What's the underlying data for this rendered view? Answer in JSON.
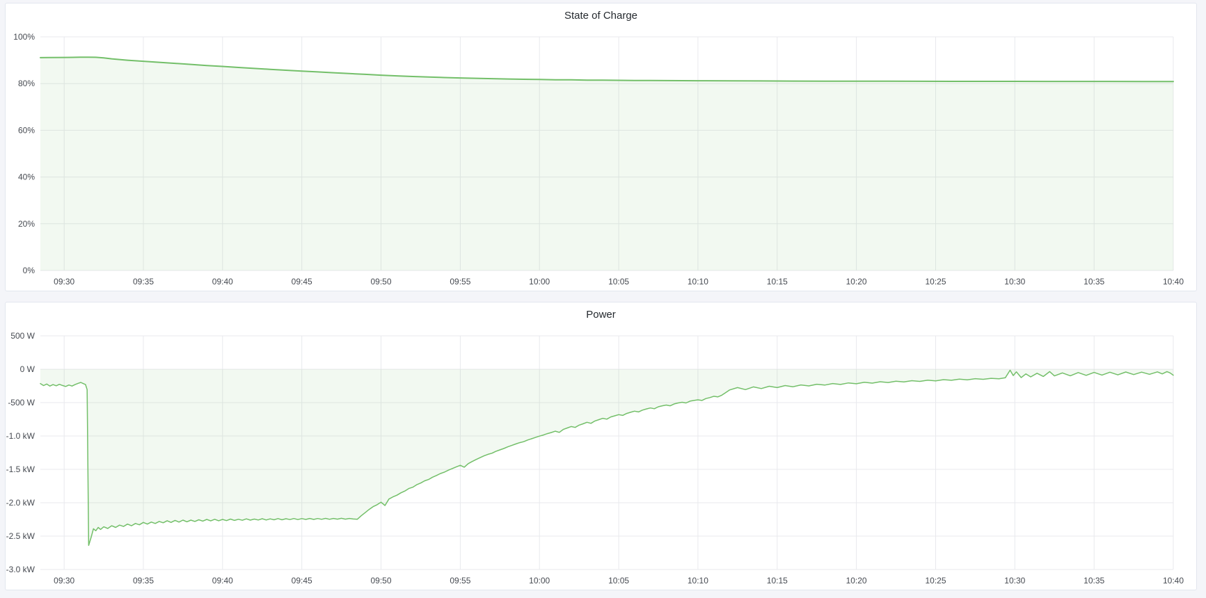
{
  "page": {
    "background": "#f4f5f9",
    "panel_background": "#ffffff",
    "panel_border": "#e2e6ee",
    "title_color": "#24292e",
    "tick_text_color": "#464a51"
  },
  "panels": [
    {
      "title": "State of Charge"
    },
    {
      "title": "Power"
    }
  ],
  "chart_data": [
    {
      "type": "area",
      "title": "State of Charge",
      "series_name": "State of Charge",
      "xlabel": "",
      "ylabel": "",
      "unit": "percent",
      "grid": "on",
      "legend": "none",
      "x_tick_labels": [
        "09:30",
        "09:35",
        "09:40",
        "09:45",
        "09:50",
        "09:55",
        "10:00",
        "10:05",
        "10:10",
        "10:15",
        "10:20",
        "10:25",
        "10:30",
        "10:35",
        "10:40"
      ],
      "x_tick_minutes": [
        0,
        5,
        10,
        15,
        20,
        25,
        30,
        35,
        40,
        45,
        50,
        55,
        60,
        65,
        70
      ],
      "x_range_minutes": [
        -1.5,
        70
      ],
      "y_range": [
        0,
        100
      ],
      "y_ticks": [
        {
          "value": 100,
          "label": "100%"
        },
        {
          "value": 80,
          "label": "80%"
        },
        {
          "value": 60,
          "label": "60%"
        },
        {
          "value": 40,
          "label": "40%"
        },
        {
          "value": 20,
          "label": "20%"
        },
        {
          "value": 0,
          "label": "0%"
        }
      ],
      "line_color": "#73bf69",
      "line_width": 2,
      "fill_color": "rgba(115,191,105,0.09)",
      "grid_color": "#e8e9ed",
      "tick_text_color": "#464a51",
      "points_minutes_value": [
        [
          -1.5,
          91.1
        ],
        [
          -1,
          91.15
        ],
        [
          0,
          91.2
        ],
        [
          0.5,
          91.22
        ],
        [
          1,
          91.28
        ],
        [
          1.5,
          91.3
        ],
        [
          2,
          91.25
        ],
        [
          2.5,
          91.0
        ],
        [
          3,
          90.6
        ],
        [
          3.5,
          90.3
        ],
        [
          4,
          90.0
        ],
        [
          5,
          89.55
        ],
        [
          6,
          89.1
        ],
        [
          7,
          88.65
        ],
        [
          8,
          88.2
        ],
        [
          9,
          87.75
        ],
        [
          10,
          87.35
        ],
        [
          11,
          86.9
        ],
        [
          12,
          86.5
        ],
        [
          13,
          86.1
        ],
        [
          14,
          85.7
        ],
        [
          15,
          85.35
        ],
        [
          16,
          85.0
        ],
        [
          17,
          84.65
        ],
        [
          18,
          84.3
        ],
        [
          19,
          83.95
        ],
        [
          20,
          83.6
        ],
        [
          21,
          83.3
        ],
        [
          22,
          83.05
        ],
        [
          23,
          82.8
        ],
        [
          24,
          82.6
        ],
        [
          25,
          82.4
        ],
        [
          26,
          82.25
        ],
        [
          27,
          82.1
        ],
        [
          28,
          81.95
        ],
        [
          29,
          81.85
        ],
        [
          30,
          81.75
        ],
        [
          31,
          81.65
        ],
        [
          32,
          81.6
        ],
        [
          33,
          81.5
        ],
        [
          34,
          81.45
        ],
        [
          35,
          81.4
        ],
        [
          36,
          81.35
        ],
        [
          37,
          81.3
        ],
        [
          38,
          81.28
        ],
        [
          39,
          81.25
        ],
        [
          40,
          81.22
        ],
        [
          42,
          81.18
        ],
        [
          44,
          81.12
        ],
        [
          46,
          81.08
        ],
        [
          48,
          81.05
        ],
        [
          50,
          81.02
        ],
        [
          52,
          81.0
        ],
        [
          54,
          80.98
        ],
        [
          56,
          80.96
        ],
        [
          58,
          80.95
        ],
        [
          60,
          80.94
        ],
        [
          62,
          80.93
        ],
        [
          64,
          80.92
        ],
        [
          66,
          80.91
        ],
        [
          68,
          80.9
        ],
        [
          70,
          80.9
        ]
      ]
    },
    {
      "type": "area",
      "title": "Power",
      "series_name": "Power",
      "xlabel": "",
      "ylabel": "",
      "unit": "watt",
      "grid": "on",
      "legend": "none",
      "x_tick_labels": [
        "09:30",
        "09:35",
        "09:40",
        "09:45",
        "09:50",
        "09:55",
        "10:00",
        "10:05",
        "10:10",
        "10:15",
        "10:20",
        "10:25",
        "10:30",
        "10:35",
        "10:40"
      ],
      "x_tick_minutes": [
        0,
        5,
        10,
        15,
        20,
        25,
        30,
        35,
        40,
        45,
        50,
        55,
        60,
        65,
        70
      ],
      "x_range_minutes": [
        -1.5,
        70
      ],
      "y_range": [
        -3000,
        500
      ],
      "y_ticks": [
        {
          "value": 500,
          "label": "500 W"
        },
        {
          "value": 0,
          "label": "0 W"
        },
        {
          "value": -500,
          "label": "-500 W"
        },
        {
          "value": -1000,
          "label": "-1.0 kW"
        },
        {
          "value": -1500,
          "label": "-1.5 kW"
        },
        {
          "value": -2000,
          "label": "-2.0 kW"
        },
        {
          "value": -2500,
          "label": "-2.5 kW"
        },
        {
          "value": -3000,
          "label": "-3.0 kW"
        }
      ],
      "line_color": "#73bf69",
      "line_width": 1.5,
      "fill_color": "rgba(115,191,105,0.09)",
      "grid_color": "#e8e9ed",
      "tick_text_color": "#464a51",
      "points_minutes_value": [
        [
          -1.5,
          -215
        ],
        [
          -1.3,
          -245
        ],
        [
          -1.1,
          -222
        ],
        [
          -0.9,
          -252
        ],
        [
          -0.7,
          -230
        ],
        [
          -0.5,
          -248
        ],
        [
          -0.3,
          -226
        ],
        [
          -0.1,
          -244
        ],
        [
          0.1,
          -258
        ],
        [
          0.3,
          -236
        ],
        [
          0.5,
          -252
        ],
        [
          0.7,
          -228
        ],
        [
          0.9,
          -210
        ],
        [
          1.05,
          -198
        ],
        [
          1.2,
          -215
        ],
        [
          1.35,
          -230
        ],
        [
          1.45,
          -305
        ],
        [
          1.55,
          -2640
        ],
        [
          1.7,
          -2520
        ],
        [
          1.85,
          -2390
        ],
        [
          2,
          -2420
        ],
        [
          2.15,
          -2370
        ],
        [
          2.3,
          -2400
        ],
        [
          2.5,
          -2360
        ],
        [
          2.75,
          -2385
        ],
        [
          3,
          -2345
        ],
        [
          3.25,
          -2370
        ],
        [
          3.5,
          -2335
        ],
        [
          3.75,
          -2355
        ],
        [
          4,
          -2320
        ],
        [
          4.25,
          -2345
        ],
        [
          4.5,
          -2310
        ],
        [
          4.75,
          -2330
        ],
        [
          5,
          -2295
        ],
        [
          5.25,
          -2320
        ],
        [
          5.5,
          -2290
        ],
        [
          5.75,
          -2310
        ],
        [
          6,
          -2280
        ],
        [
          6.25,
          -2300
        ],
        [
          6.5,
          -2270
        ],
        [
          6.75,
          -2295
        ],
        [
          7,
          -2265
        ],
        [
          7.25,
          -2290
        ],
        [
          7.5,
          -2260
        ],
        [
          7.75,
          -2285
        ],
        [
          8,
          -2260
        ],
        [
          8.25,
          -2280
        ],
        [
          8.5,
          -2255
        ],
        [
          8.75,
          -2275
        ],
        [
          9,
          -2250
        ],
        [
          9.25,
          -2272
        ],
        [
          9.5,
          -2248
        ],
        [
          9.75,
          -2270
        ],
        [
          10,
          -2250
        ],
        [
          10.25,
          -2268
        ],
        [
          10.5,
          -2245
        ],
        [
          10.75,
          -2265
        ],
        [
          11,
          -2248
        ],
        [
          11.25,
          -2262
        ],
        [
          11.5,
          -2242
        ],
        [
          11.75,
          -2260
        ],
        [
          12,
          -2245
        ],
        [
          12.25,
          -2258
        ],
        [
          12.5,
          -2240
        ],
        [
          12.75,
          -2258
        ],
        [
          13,
          -2242
        ],
        [
          13.25,
          -2255
        ],
        [
          13.5,
          -2238
        ],
        [
          13.75,
          -2255
        ],
        [
          14,
          -2240
        ],
        [
          14.25,
          -2252
        ],
        [
          14.5,
          -2236
        ],
        [
          14.75,
          -2252
        ],
        [
          15,
          -2238
        ],
        [
          15.25,
          -2250
        ],
        [
          15.5,
          -2235
        ],
        [
          15.75,
          -2250
        ],
        [
          16,
          -2236
        ],
        [
          16.25,
          -2248
        ],
        [
          16.5,
          -2234
        ],
        [
          16.75,
          -2248
        ],
        [
          17,
          -2235
        ],
        [
          17.25,
          -2246
        ],
        [
          17.5,
          -2233
        ],
        [
          17.75,
          -2246
        ],
        [
          18,
          -2235
        ],
        [
          18.25,
          -2244
        ],
        [
          18.5,
          -2248
        ],
        [
          18.75,
          -2195
        ],
        [
          19,
          -2148
        ],
        [
          19.25,
          -2100
        ],
        [
          19.5,
          -2058
        ],
        [
          19.75,
          -2030
        ],
        [
          20,
          -1992
        ],
        [
          20.25,
          -2042
        ],
        [
          20.5,
          -1945
        ],
        [
          20.75,
          -1912
        ],
        [
          21,
          -1888
        ],
        [
          21.25,
          -1852
        ],
        [
          21.5,
          -1825
        ],
        [
          21.75,
          -1788
        ],
        [
          22,
          -1768
        ],
        [
          22.25,
          -1730
        ],
        [
          22.5,
          -1705
        ],
        [
          22.75,
          -1672
        ],
        [
          23,
          -1652
        ],
        [
          23.25,
          -1618
        ],
        [
          23.5,
          -1592
        ],
        [
          23.75,
          -1562
        ],
        [
          24,
          -1542
        ],
        [
          24.25,
          -1512
        ],
        [
          24.5,
          -1488
        ],
        [
          24.75,
          -1462
        ],
        [
          25,
          -1440
        ],
        [
          25.25,
          -1468
        ],
        [
          25.5,
          -1415
        ],
        [
          25.75,
          -1382
        ],
        [
          26,
          -1352
        ],
        [
          26.25,
          -1325
        ],
        [
          26.5,
          -1298
        ],
        [
          26.75,
          -1275
        ],
        [
          27,
          -1258
        ],
        [
          27.25,
          -1230
        ],
        [
          27.5,
          -1208
        ],
        [
          27.75,
          -1188
        ],
        [
          28,
          -1162
        ],
        [
          28.25,
          -1142
        ],
        [
          28.5,
          -1120
        ],
        [
          28.75,
          -1100
        ],
        [
          29,
          -1085
        ],
        [
          29.25,
          -1060
        ],
        [
          29.5,
          -1042
        ],
        [
          29.75,
          -1022
        ],
        [
          30,
          -1002
        ],
        [
          30.25,
          -985
        ],
        [
          30.5,
          -965
        ],
        [
          30.75,
          -948
        ],
        [
          31,
          -928
        ],
        [
          31.25,
          -946
        ],
        [
          31.5,
          -902
        ],
        [
          31.75,
          -880
        ],
        [
          32,
          -858
        ],
        [
          32.25,
          -872
        ],
        [
          32.5,
          -838
        ],
        [
          32.75,
          -818
        ],
        [
          33,
          -795
        ],
        [
          33.25,
          -810
        ],
        [
          33.5,
          -775
        ],
        [
          33.75,
          -755
        ],
        [
          34,
          -735
        ],
        [
          34.25,
          -748
        ],
        [
          34.5,
          -715
        ],
        [
          34.75,
          -698
        ],
        [
          35,
          -680
        ],
        [
          35.25,
          -692
        ],
        [
          35.5,
          -662
        ],
        [
          35.75,
          -645
        ],
        [
          36,
          -628
        ],
        [
          36.25,
          -640
        ],
        [
          36.5,
          -612
        ],
        [
          36.75,
          -595
        ],
        [
          37,
          -580
        ],
        [
          37.25,
          -592
        ],
        [
          37.5,
          -562
        ],
        [
          37.75,
          -548
        ],
        [
          38,
          -536
        ],
        [
          38.25,
          -548
        ],
        [
          38.5,
          -520
        ],
        [
          38.75,
          -505
        ],
        [
          39,
          -495
        ],
        [
          39.25,
          -505
        ],
        [
          39.5,
          -478
        ],
        [
          39.75,
          -468
        ],
        [
          40,
          -458
        ],
        [
          40.25,
          -468
        ],
        [
          40.5,
          -440
        ],
        [
          40.75,
          -425
        ],
        [
          41,
          -405
        ],
        [
          41.25,
          -415
        ],
        [
          41.5,
          -390
        ],
        [
          41.75,
          -350
        ],
        [
          42,
          -310
        ],
        [
          42.5,
          -275
        ],
        [
          43,
          -305
        ],
        [
          43.5,
          -265
        ],
        [
          44,
          -290
        ],
        [
          44.5,
          -255
        ],
        [
          45,
          -275
        ],
        [
          45.5,
          -245
        ],
        [
          46,
          -262
        ],
        [
          46.5,
          -235
        ],
        [
          47,
          -250
        ],
        [
          47.5,
          -225
        ],
        [
          48,
          -238
        ],
        [
          48.5,
          -215
        ],
        [
          49,
          -228
        ],
        [
          49.5,
          -205
        ],
        [
          50,
          -218
        ],
        [
          50.5,
          -196
        ],
        [
          51,
          -208
        ],
        [
          51.5,
          -188
        ],
        [
          52,
          -199
        ],
        [
          52.5,
          -180
        ],
        [
          53,
          -190
        ],
        [
          53.5,
          -172
        ],
        [
          54,
          -182
        ],
        [
          54.5,
          -164
        ],
        [
          55,
          -174
        ],
        [
          55.5,
          -156
        ],
        [
          56,
          -166
        ],
        [
          56.5,
          -149
        ],
        [
          57,
          -158
        ],
        [
          57.5,
          -142
        ],
        [
          58,
          -151
        ],
        [
          58.5,
          -136
        ],
        [
          59,
          -144
        ],
        [
          59.4,
          -128
        ],
        [
          59.7,
          -15
        ],
        [
          59.9,
          -95
        ],
        [
          60.1,
          -40
        ],
        [
          60.4,
          -125
        ],
        [
          60.7,
          -70
        ],
        [
          61,
          -115
        ],
        [
          61.4,
          -60
        ],
        [
          61.8,
          -108
        ],
        [
          62.2,
          -35
        ],
        [
          62.5,
          -100
        ],
        [
          63,
          -55
        ],
        [
          63.5,
          -98
        ],
        [
          64,
          -50
        ],
        [
          64.5,
          -92
        ],
        [
          65,
          -48
        ],
        [
          65.5,
          -88
        ],
        [
          66,
          -45
        ],
        [
          66.5,
          -84
        ],
        [
          67,
          -42
        ],
        [
          67.5,
          -80
        ],
        [
          68,
          -44
        ],
        [
          68.5,
          -76
        ],
        [
          69,
          -40
        ],
        [
          69.3,
          -70
        ],
        [
          69.6,
          -35
        ],
        [
          69.8,
          -55
        ],
        [
          70,
          -90
        ]
      ]
    }
  ]
}
